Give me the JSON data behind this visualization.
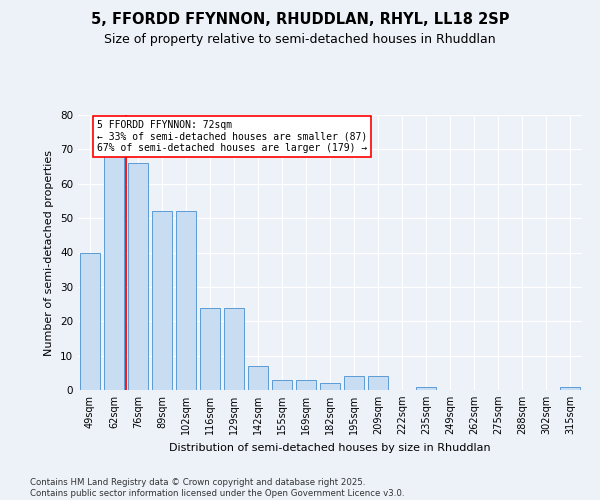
{
  "title_line1": "5, FFORDD FFYNNON, RHUDDLAN, RHYL, LL18 2SP",
  "title_line2": "Size of property relative to semi-detached houses in Rhuddlan",
  "xlabel": "Distribution of semi-detached houses by size in Rhuddlan",
  "ylabel": "Number of semi-detached properties",
  "categories": [
    "49sqm",
    "62sqm",
    "76sqm",
    "89sqm",
    "102sqm",
    "116sqm",
    "129sqm",
    "142sqm",
    "155sqm",
    "169sqm",
    "182sqm",
    "195sqm",
    "209sqm",
    "222sqm",
    "235sqm",
    "249sqm",
    "262sqm",
    "275sqm",
    "288sqm",
    "302sqm",
    "315sqm"
  ],
  "values": [
    40,
    68,
    66,
    52,
    52,
    24,
    24,
    7,
    3,
    3,
    2,
    4,
    4,
    0,
    1,
    0,
    0,
    0,
    0,
    0,
    1
  ],
  "bar_color": "#c9ddf2",
  "bar_edge_color": "#5b9bd5",
  "redline_x": 1.5,
  "annotation_title": "5 FFORDD FFYNNON: 72sqm",
  "annotation_smaller": "← 33% of semi-detached houses are smaller (87)",
  "annotation_larger": "67% of semi-detached houses are larger (179) →",
  "ylim_max": 80,
  "yticks": [
    0,
    10,
    20,
    30,
    40,
    50,
    60,
    70,
    80
  ],
  "bg_color": "#edf2f9",
  "grid_color": "#ffffff",
  "footer_line1": "Contains HM Land Registry data © Crown copyright and database right 2025.",
  "footer_line2": "Contains public sector information licensed under the Open Government Licence v3.0."
}
